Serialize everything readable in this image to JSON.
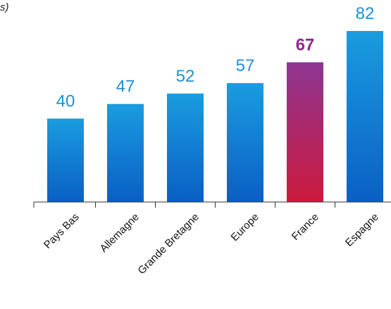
{
  "corner_text": "s)",
  "chart_data": {
    "type": "bar",
    "categories": [
      "Pays Bas",
      "Allemagne",
      "Grande Bretagne",
      "Europe",
      "France",
      "Espagne"
    ],
    "values": [
      40,
      47,
      52,
      57,
      67,
      82
    ],
    "highlight": "France",
    "ylim": [
      0,
      90
    ],
    "grid": false,
    "colors": {
      "bar_top": "#1a9ce0",
      "bar_bottom": "#0a5fc4",
      "highlight_top": "#8e3593",
      "highlight_bottom": "#cc1a3c",
      "label": "#1e90d6",
      "highlight_label": "#8e2a8a",
      "axis": "#333333"
    }
  }
}
